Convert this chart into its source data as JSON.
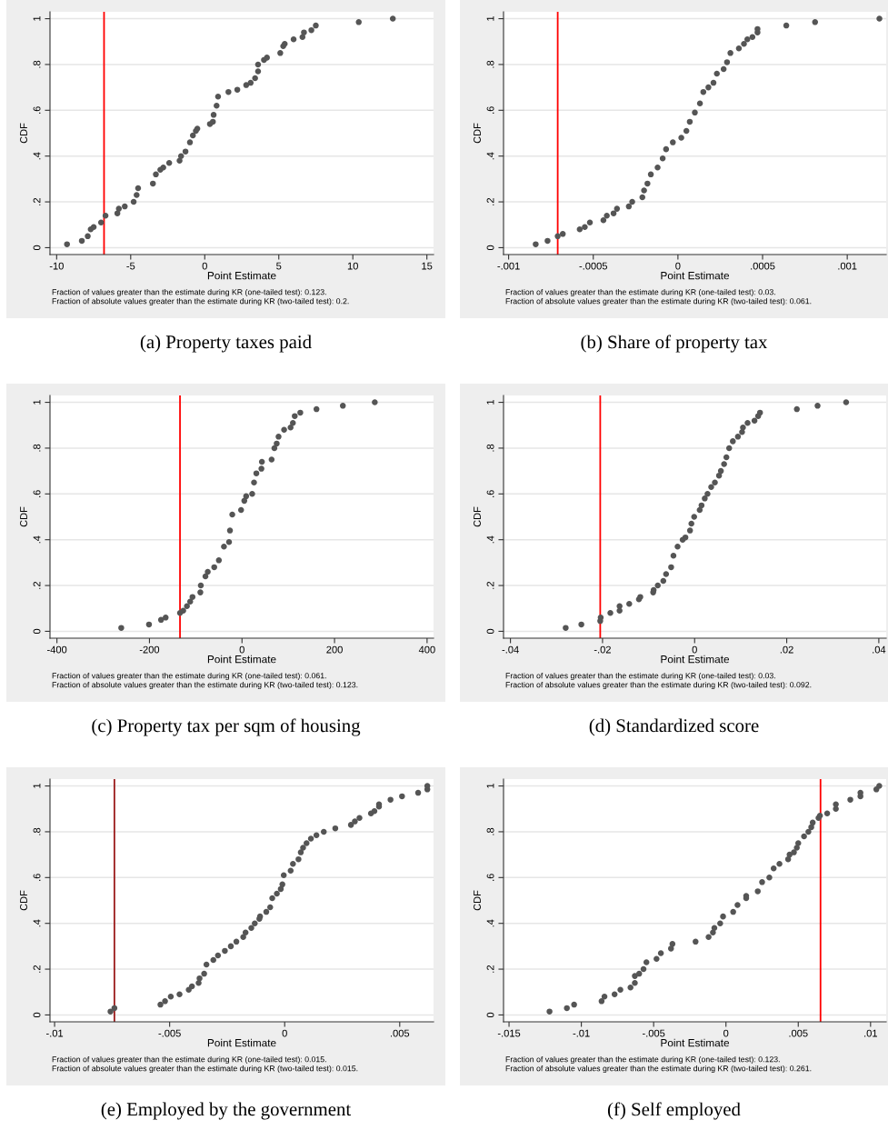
{
  "chart_data": [
    {
      "type": "scatter",
      "title": "(a) Property taxes paid",
      "xlabel": "Point Estimate",
      "ylabel": "CDF",
      "annotations": [
        "Fraction of values greater than the estimate during KR (one-tailed test): 0.123.",
        "Fraction of absolute values greater than the estimate during KR (two-tailed test): 0.2."
      ],
      "xlim": [
        -10.45,
        15.45
      ],
      "ylim": [
        -0.03,
        1.03
      ],
      "xticks": [
        -10,
        -5,
        0,
        5,
        10,
        15
      ],
      "yticks": [
        0,
        {
          "value": 0.2,
          "label": ".2"
        },
        {
          "value": 0.4,
          "label": ".4"
        },
        {
          "value": 0.6,
          "label": ".6"
        },
        {
          "value": 0.8,
          "label": ".8"
        },
        1
      ],
      "grid": "y",
      "marker": "circle",
      "ref_lines": [
        {
          "axis": "x",
          "value": -6.8,
          "color": "#ff0000"
        }
      ],
      "series": [
        {
          "color": "#555555",
          "x": [
            -9.3,
            -8.3,
            -7.9,
            -7.7,
            -7.5,
            -7.0,
            -6.7,
            -5.9,
            -5.8,
            -5.4,
            -4.8,
            -4.6,
            -4.5,
            -3.5,
            -3.3,
            -3.0,
            -2.8,
            -2.4,
            -1.7,
            -1.6,
            -1.3,
            -1.0,
            -0.8,
            -0.6,
            -0.5,
            0.35,
            0.55,
            0.6,
            0.8,
            0.9,
            1.6,
            2.2,
            2.8,
            3.1,
            3.4,
            3.6,
            3.6,
            4.0,
            4.2,
            5.1,
            5.3,
            5.4,
            6.0,
            6.6,
            6.7,
            7.2,
            7.5,
            10.4,
            12.7
          ],
          "values": [
            0.015,
            0.03,
            0.05,
            0.08,
            0.09,
            0.11,
            0.14,
            0.15,
            0.17,
            0.18,
            0.2,
            0.23,
            0.26,
            0.28,
            0.32,
            0.34,
            0.35,
            0.37,
            0.38,
            0.4,
            0.42,
            0.46,
            0.49,
            0.51,
            0.52,
            0.54,
            0.55,
            0.58,
            0.62,
            0.66,
            0.68,
            0.69,
            0.71,
            0.72,
            0.74,
            0.77,
            0.8,
            0.82,
            0.83,
            0.85,
            0.88,
            0.89,
            0.91,
            0.92,
            0.94,
            0.95,
            0.97,
            0.985,
            1.0
          ]
        }
      ]
    },
    {
      "type": "scatter",
      "title": "(b) Share of property tax",
      "xlabel": "Point Estimate",
      "ylabel": "CDF",
      "annotations": [
        "Fraction of values greater than the estimate during KR (one-tailed test): 0.03.",
        "Fraction of absolute values greater than the estimate during KR (two-tailed test): 0.061."
      ],
      "xlim": [
        -0.00103,
        0.00123
      ],
      "ylim": [
        -0.03,
        1.03
      ],
      "xticks": [
        {
          "value": -0.001,
          "label": "-.001"
        },
        {
          "value": -0.0005,
          "label": "-.0005"
        },
        0,
        {
          "value": 0.0005,
          "label": ".0005"
        },
        {
          "value": 0.001,
          "label": ".001"
        }
      ],
      "yticks": [
        0,
        {
          "value": 0.2,
          "label": ".2"
        },
        {
          "value": 0.4,
          "label": ".4"
        },
        {
          "value": 0.6,
          "label": ".6"
        },
        {
          "value": 0.8,
          "label": ".8"
        },
        1
      ],
      "grid": "y",
      "marker": "circle",
      "ref_lines": [
        {
          "axis": "x",
          "value": -0.00071,
          "color": "#ff0000"
        }
      ],
      "series": [
        {
          "color": "#555555",
          "x": [
            -0.00084,
            -0.00077,
            -0.00071,
            -0.00068,
            -0.00058,
            -0.00055,
            -0.00052,
            -0.00044,
            -0.00042,
            -0.00038,
            -0.00036,
            -0.00029,
            -0.00027,
            -0.00021,
            -0.0002,
            -0.00018,
            -0.00016,
            -0.00012,
            -9e-05,
            -7e-05,
            -3e-05,
            2e-05,
            5e-05,
            7e-05,
            0.0001,
            0.00013,
            0.00015,
            0.00018,
            0.00021,
            0.00023,
            0.00027,
            0.00029,
            0.00031,
            0.00036,
            0.00039,
            0.00041,
            0.00044,
            0.00047,
            0.00047,
            0.00064,
            0.00081,
            0.00119
          ],
          "values": [
            0.015,
            0.03,
            0.05,
            0.06,
            0.08,
            0.09,
            0.11,
            0.12,
            0.14,
            0.15,
            0.17,
            0.18,
            0.2,
            0.22,
            0.25,
            0.28,
            0.32,
            0.35,
            0.39,
            0.43,
            0.46,
            0.48,
            0.51,
            0.55,
            0.59,
            0.63,
            0.68,
            0.7,
            0.72,
            0.76,
            0.78,
            0.81,
            0.85,
            0.87,
            0.89,
            0.91,
            0.92,
            0.94,
            0.955,
            0.97,
            0.985,
            1.0
          ]
        }
      ]
    },
    {
      "type": "scatter",
      "title": "(c) Property tax per sqm of housing",
      "xlabel": "Point Estimate",
      "ylabel": "CDF",
      "annotations": [
        "Fraction of values greater than the estimate during KR (one-tailed test): 0.061.",
        "Fraction of absolute values greater than the estimate during KR (two-tailed test): 0.123."
      ],
      "xlim": [
        -415,
        414
      ],
      "ylim": [
        -0.03,
        1.03
      ],
      "xticks": [
        -400,
        -200,
        0,
        200,
        400
      ],
      "yticks": [
        0,
        {
          "value": 0.2,
          "label": ".2"
        },
        {
          "value": 0.4,
          "label": ".4"
        },
        {
          "value": 0.6,
          "label": ".6"
        },
        {
          "value": 0.8,
          "label": ".8"
        },
        1
      ],
      "grid": "y",
      "marker": "circle",
      "ref_lines": [
        {
          "axis": "x",
          "value": -134,
          "color": "#ff0000"
        }
      ],
      "series": [
        {
          "color": "#555555",
          "x": [
            -261,
            -201,
            -175,
            -165,
            -134,
            -127,
            -119,
            -112,
            -107,
            -90,
            -89,
            -79,
            -74,
            -60,
            -50,
            -39,
            -28,
            -26,
            -21,
            -2,
            5,
            9,
            22,
            26,
            31,
            42,
            43,
            64,
            70,
            75,
            79,
            91,
            105,
            110,
            114,
            126,
            161,
            218,
            287
          ],
          "values": [
            0.015,
            0.03,
            0.05,
            0.06,
            0.08,
            0.09,
            0.11,
            0.13,
            0.15,
            0.17,
            0.2,
            0.24,
            0.26,
            0.28,
            0.31,
            0.37,
            0.39,
            0.44,
            0.51,
            0.53,
            0.57,
            0.59,
            0.6,
            0.65,
            0.69,
            0.71,
            0.74,
            0.75,
            0.8,
            0.82,
            0.85,
            0.88,
            0.89,
            0.91,
            0.94,
            0.955,
            0.97,
            0.985,
            1.0
          ]
        }
      ]
    },
    {
      "type": "scatter",
      "title": "(d) Standardized score",
      "xlabel": "Point Estimate",
      "ylabel": "CDF",
      "annotations": [
        "Fraction of values greater than the estimate during KR (one-tailed test): 0.03.",
        "Fraction of absolute values greater than the estimate during KR (two-tailed test): 0.092."
      ],
      "xlim": [
        -0.0415,
        0.0416
      ],
      "ylim": [
        -0.03,
        1.03
      ],
      "xticks": [
        {
          "value": -0.04,
          "label": "-.04"
        },
        {
          "value": -0.02,
          "label": "-.02"
        },
        0,
        {
          "value": 0.02,
          "label": ".02"
        },
        {
          "value": 0.04,
          "label": ".04"
        }
      ],
      "yticks": [
        0,
        {
          "value": 0.2,
          "label": ".2"
        },
        {
          "value": 0.4,
          "label": ".4"
        },
        {
          "value": 0.6,
          "label": ".6"
        },
        {
          "value": 0.8,
          "label": ".8"
        },
        1
      ],
      "grid": "y",
      "marker": "circle",
      "ref_lines": [
        {
          "axis": "x",
          "value": -0.0205,
          "color": "#ff0000"
        }
      ],
      "series": [
        {
          "color": "#555555",
          "x": [
            -0.028,
            -0.0246,
            -0.0205,
            -0.0204,
            -0.0183,
            -0.0163,
            -0.0163,
            -0.0142,
            -0.0121,
            -0.0118,
            -0.009,
            -0.0089,
            -0.008,
            -0.0068,
            -0.0062,
            -0.0051,
            -0.0046,
            -0.0037,
            -0.0026,
            -0.002,
            -0.001,
            -0.0007,
            -0.0001,
            0.0011,
            0.0015,
            0.0022,
            0.0028,
            0.0036,
            0.0044,
            0.0053,
            0.0057,
            0.0064,
            0.0069,
            0.0075,
            0.0083,
            0.0094,
            0.0103,
            0.0105,
            0.0115,
            0.013,
            0.0138,
            0.0142,
            0.0222,
            0.0267,
            0.0329
          ],
          "values": [
            0.015,
            0.03,
            0.045,
            0.06,
            0.08,
            0.09,
            0.11,
            0.12,
            0.14,
            0.15,
            0.17,
            0.18,
            0.2,
            0.22,
            0.25,
            0.28,
            0.33,
            0.37,
            0.4,
            0.41,
            0.44,
            0.47,
            0.5,
            0.53,
            0.55,
            0.58,
            0.6,
            0.63,
            0.65,
            0.68,
            0.7,
            0.73,
            0.76,
            0.8,
            0.83,
            0.85,
            0.87,
            0.89,
            0.91,
            0.92,
            0.94,
            0.955,
            0.97,
            0.985,
            1.0
          ]
        }
      ]
    },
    {
      "type": "scatter",
      "title": "(e) Employed by the government",
      "xlabel": "Point Estimate",
      "ylabel": "CDF",
      "annotations": [
        "Fraction of values greater than the estimate during KR (one-tailed test): 0.015.",
        "Fraction of absolute values greater than the estimate during KR (two-tailed test): 0.015."
      ],
      "xlim": [
        -0.0102,
        0.00647
      ],
      "ylim": [
        -0.03,
        1.03
      ],
      "xticks": [
        {
          "value": -0.01,
          "label": "-.01"
        },
        {
          "value": -0.005,
          "label": "-.005"
        },
        0,
        {
          "value": 0.005,
          "label": ".005"
        }
      ],
      "yticks": [
        0,
        {
          "value": 0.2,
          "label": ".2"
        },
        {
          "value": 0.4,
          "label": ".4"
        },
        {
          "value": 0.6,
          "label": ".6"
        },
        {
          "value": 0.8,
          "label": ".8"
        },
        1
      ],
      "grid": "y",
      "marker": "circle",
      "ref_lines": [
        {
          "axis": "x",
          "value": -0.0074,
          "color": "#9b1c1c"
        }
      ],
      "series": [
        {
          "color": "#555555",
          "x": [
            -0.00757,
            -0.0074,
            -0.0054,
            -0.0052,
            -0.00495,
            -0.00457,
            -0.00417,
            -0.00403,
            -0.00374,
            -0.0037,
            -0.0035,
            -0.0034,
            -0.0031,
            -0.0029,
            -0.0026,
            -0.00234,
            -0.0021,
            -0.0018,
            -0.0017,
            -0.00145,
            -0.0013,
            -0.0011,
            -0.00107,
            -0.0008,
            -0.00063,
            -0.00054,
            -0.00034,
            -0.00017,
            -0.0001,
            -4e-05,
            0.00026,
            0.00036,
            0.0006,
            0.0007,
            0.0008,
            0.00095,
            0.00114,
            0.00138,
            0.0017,
            0.0022,
            0.00288,
            0.00305,
            0.00325,
            0.00375,
            0.0039,
            0.0041,
            0.0041,
            0.0046,
            0.0051,
            0.0058,
            0.0062,
            0.0062
          ],
          "values": [
            0.015,
            0.03,
            0.045,
            0.06,
            0.08,
            0.09,
            0.11,
            0.125,
            0.14,
            0.16,
            0.18,
            0.22,
            0.24,
            0.26,
            0.28,
            0.3,
            0.32,
            0.34,
            0.36,
            0.38,
            0.4,
            0.42,
            0.43,
            0.45,
            0.47,
            0.51,
            0.53,
            0.55,
            0.57,
            0.61,
            0.63,
            0.66,
            0.68,
            0.71,
            0.73,
            0.75,
            0.77,
            0.785,
            0.8,
            0.815,
            0.83,
            0.845,
            0.86,
            0.88,
            0.89,
            0.91,
            0.92,
            0.94,
            0.955,
            0.97,
            0.985,
            1.0
          ]
        }
      ]
    },
    {
      "type": "scatter",
      "title": "(f) Self employed",
      "xlabel": "Point Estimate",
      "ylabel": "CDF",
      "annotations": [
        "Fraction of values greater than the estimate during KR (one-tailed test): 0.123.",
        "Fraction of absolute values greater than the estimate during KR (two-tailed test): 0.261."
      ],
      "xlim": [
        -0.01538,
        0.01108
      ],
      "ylim": [
        -0.03,
        1.03
      ],
      "xticks": [
        {
          "value": -0.015,
          "label": "-.015"
        },
        {
          "value": -0.01,
          "label": "-.01"
        },
        {
          "value": -0.005,
          "label": "-.005"
        },
        0,
        {
          "value": 0.005,
          "label": ".005"
        },
        {
          "value": 0.01,
          "label": ".01"
        }
      ],
      "yticks": [
        0,
        {
          "value": 0.2,
          "label": ".2"
        },
        {
          "value": 0.4,
          "label": ".4"
        },
        {
          "value": 0.6,
          "label": ".6"
        },
        {
          "value": 0.8,
          "label": ".8"
        },
        1
      ],
      "grid": "y",
      "marker": "circle",
      "ref_lines": [
        {
          "axis": "x",
          "value": 0.00654,
          "color": "#ff0000"
        }
      ],
      "series": [
        {
          "color": "#555555",
          "x": [
            -0.0122,
            -0.011,
            -0.0105,
            -0.0086,
            -0.0084,
            -0.0077,
            -0.0073,
            -0.0066,
            -0.0063,
            -0.0063,
            -0.006,
            -0.0057,
            -0.0055,
            -0.0048,
            -0.0045,
            -0.0038,
            -0.0037,
            -0.0021,
            -0.0012,
            -0.0009,
            -0.0008,
            -0.0004,
            -0.0002,
            0.0005,
            0.0008,
            0.0014,
            0.0014,
            0.0022,
            0.0025,
            0.003,
            0.0033,
            0.0037,
            0.0043,
            0.0044,
            0.0047,
            0.0049,
            0.005,
            0.0054,
            0.0057,
            0.0059,
            0.006,
            0.0064,
            0.0065,
            0.007,
            0.0076,
            0.0076,
            0.0086,
            0.0093,
            0.0093,
            0.0104,
            0.0106
          ],
          "values": [
            0.015,
            0.03,
            0.045,
            0.06,
            0.08,
            0.09,
            0.11,
            0.12,
            0.14,
            0.17,
            0.18,
            0.2,
            0.23,
            0.245,
            0.27,
            0.29,
            0.31,
            0.32,
            0.34,
            0.36,
            0.38,
            0.4,
            0.43,
            0.45,
            0.48,
            0.51,
            0.52,
            0.54,
            0.58,
            0.6,
            0.64,
            0.66,
            0.68,
            0.7,
            0.71,
            0.73,
            0.75,
            0.78,
            0.8,
            0.82,
            0.84,
            0.86,
            0.87,
            0.88,
            0.9,
            0.92,
            0.94,
            0.955,
            0.97,
            0.985,
            1.0
          ]
        }
      ]
    }
  ]
}
